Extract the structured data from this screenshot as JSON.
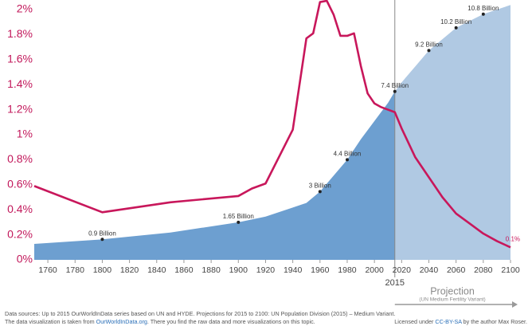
{
  "chart_data": {
    "type": "area_line",
    "xlim": [
      1750,
      2100
    ],
    "xticks": [
      1760,
      1780,
      1800,
      1820,
      1840,
      1860,
      1880,
      1900,
      1920,
      1940,
      1960,
      1980,
      2000,
      2020,
      2040,
      2060,
      2080,
      2100
    ],
    "ylim": [
      0,
      2
    ],
    "yticks": [
      {
        "value": 0,
        "label": "0%"
      },
      {
        "value": 0.2,
        "label": "0.2%"
      },
      {
        "value": 0.4,
        "label": "0.4%"
      },
      {
        "value": 0.6,
        "label": "0.6%"
      },
      {
        "value": 0.8,
        "label": "0.8%"
      },
      {
        "value": 1,
        "label": "1%"
      },
      {
        "value": 1.2,
        "label": "1.2%"
      },
      {
        "value": 1.4,
        "label": "1.4%"
      },
      {
        "value": 1.6,
        "label": "1.6%"
      },
      {
        "value": 1.8,
        "label": "1.8%"
      },
      {
        "value": 2,
        "label": "2%"
      }
    ],
    "y2lim": [
      0,
      11
    ],
    "projection_start": 2015,
    "projection_label": "Projection",
    "projection_sublabel": "(UN Medium Fertility Variant)",
    "population": {
      "axis": "y2",
      "color": "#6d9fd0",
      "projection_color": "#b0c9e3",
      "x": [
        1750,
        1800,
        1850,
        1900,
        1920,
        1940,
        1950,
        1960,
        1970,
        1980,
        1990,
        2000,
        2010,
        2015,
        2020,
        2030,
        2040,
        2050,
        2060,
        2070,
        2080,
        2090,
        2100
      ],
      "values": [
        0.7,
        0.9,
        1.2,
        1.65,
        1.9,
        2.3,
        2.5,
        3,
        3.7,
        4.4,
        5.3,
        6.1,
        6.9,
        7.4,
        7.8,
        8.5,
        9.2,
        9.7,
        10.2,
        10.5,
        10.8,
        11,
        11.2
      ],
      "value_labels": [
        null,
        "0.9 Billion",
        null,
        "1.65 Billion",
        null,
        null,
        null,
        "3 Billion",
        null,
        "4.4 Billion",
        null,
        null,
        null,
        "7.4 Billion",
        null,
        null,
        "9.2 Billion",
        null,
        "10.2 Billion",
        null,
        "10.8 Billion",
        null,
        null
      ]
    },
    "growth_rate": {
      "color": "#c8175b",
      "x": [
        1750,
        1800,
        1850,
        1900,
        1910,
        1920,
        1940,
        1950,
        1955,
        1960,
        1965,
        1970,
        1975,
        1980,
        1985,
        1990,
        1995,
        2000,
        2005,
        2015,
        2020,
        2030,
        2040,
        2050,
        2060,
        2070,
        2080,
        2090,
        2100
      ],
      "values": [
        0.59,
        0.38,
        0.46,
        0.51,
        0.57,
        0.61,
        1.04,
        1.77,
        1.81,
        2.06,
        2.07,
        1.96,
        1.79,
        1.79,
        1.81,
        1.55,
        1.33,
        1.25,
        1.22,
        1.18,
        1.05,
        0.82,
        0.66,
        0.5,
        0.37,
        0.29,
        0.21,
        0.15,
        0.1
      ],
      "value_labels": [
        null,
        null,
        null,
        null,
        null,
        null,
        null,
        null,
        null,
        null,
        null,
        null,
        null,
        null,
        null,
        null,
        null,
        null,
        null,
        null,
        null,
        null,
        null,
        null,
        null,
        null,
        null,
        null,
        "0.1%"
      ]
    }
  },
  "footer": {
    "sources": "Data sources:  Up to 2015 OurWorldInData series based on UN and HYDE. Projections for 2015 to 2100: UN Population Division (2015) – Medium Variant.",
    "note_before": "The data visualization is taken from ",
    "note_link": "OurWorldInData.org",
    "note_after": ". There you find the raw data and more visualizations on this topic.",
    "license_before": "Licensed under ",
    "license_link": "CC-BY-SA",
    "license_after": " by the author Max Roser."
  }
}
